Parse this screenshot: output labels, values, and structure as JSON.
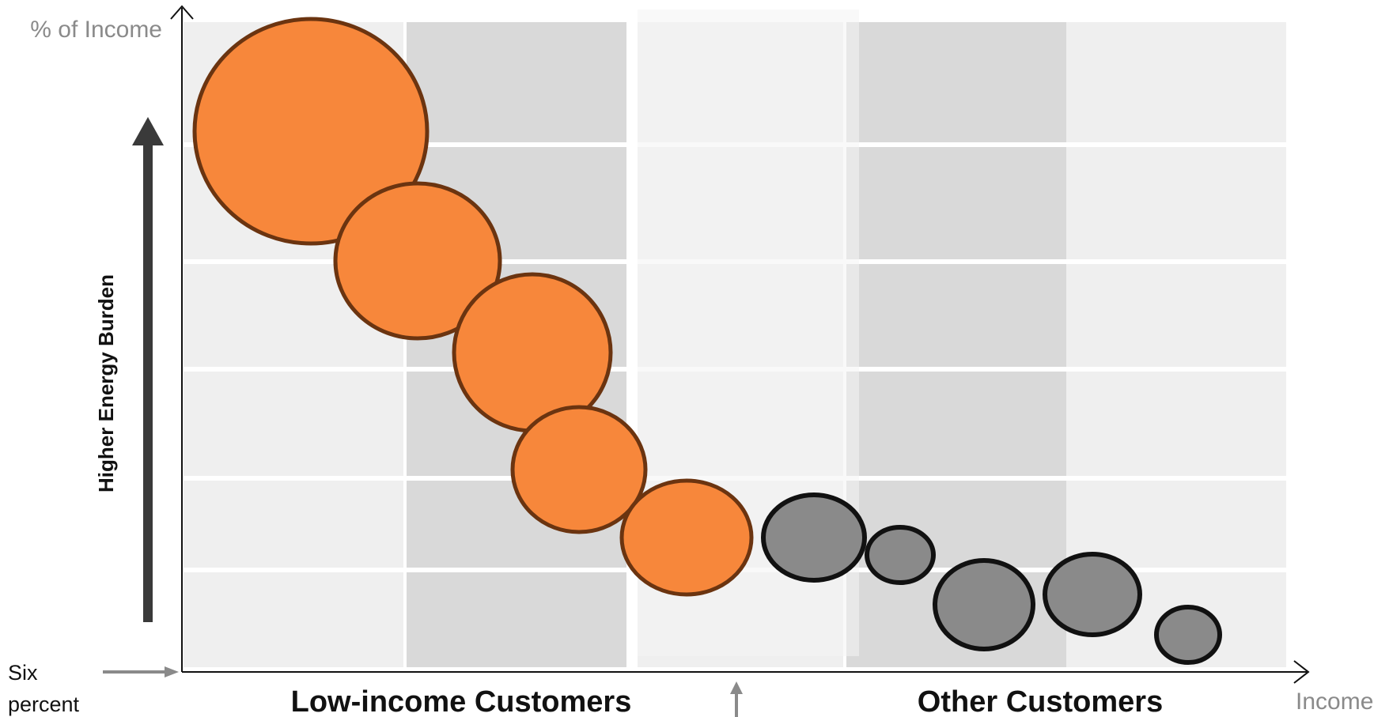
{
  "labels": {
    "y_axis": "% of Income",
    "x_axis": "Income",
    "burden_arrow": "Higher Energy Burden",
    "baseline_line1": "Six",
    "baseline_line2": "percent",
    "low_income": "Low-income Customers",
    "other": "Other Customers"
  },
  "colors": {
    "low_income_fill": "#f7873b",
    "low_income_stroke": "#6b3410",
    "other_fill": "#8a8a8a",
    "other_stroke": "#111111",
    "axis": "#111111",
    "arrow": "#3a3a3a",
    "light_cell": "#efefef",
    "dark_cell": "#d9d9d9"
  },
  "bubble_groups": [
    {
      "group": "low_income",
      "count": 5
    },
    {
      "group": "other",
      "count": 5
    }
  ]
}
